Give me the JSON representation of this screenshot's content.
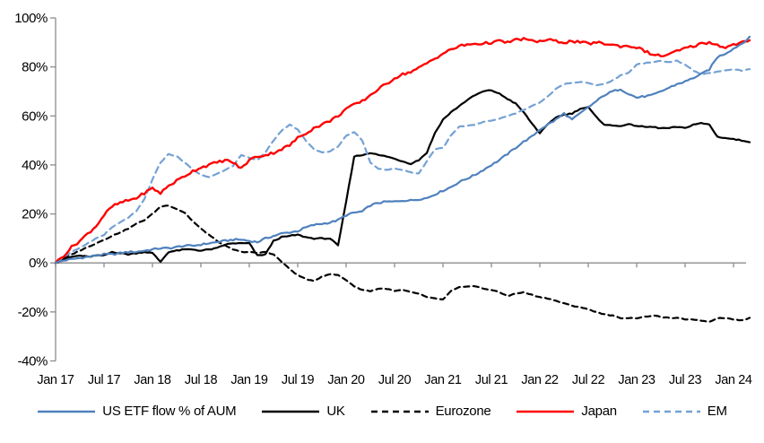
{
  "chart_data": {
    "type": "line",
    "title": "",
    "xlabel": "",
    "ylabel": "",
    "x_unit": "months since Jan 2017 (monthly samples, Jan 2017 - Mar 2024)",
    "ylim": [
      -40,
      100
    ],
    "grid": false,
    "legend_position": "bottom",
    "axis_color": "#8c8c8c",
    "y_tick_values": [
      100,
      80,
      60,
      40,
      20,
      0,
      -20,
      -40
    ],
    "y_tick_labels": [
      "100%",
      "80%",
      "60%",
      "40%",
      "20%",
      "0%",
      "-20%",
      "-40%"
    ],
    "x_tick_labels": [
      "Jan 17",
      "Jul 17",
      "Jan 18",
      "Jul 18",
      "Jan 19",
      "Jul 19",
      "Jan 20",
      "Jul 20",
      "Jan 21",
      "Jul 21",
      "Jan 22",
      "Jul 22",
      "Jan 23",
      "Jul 23",
      "Jan 24"
    ],
    "series": [
      {
        "name": "US ETF flow % of AUM",
        "slug": "us-etf-flow",
        "color": "#4f81bd",
        "dash": "solid",
        "values": [
          0,
          1,
          1.5,
          2,
          2.5,
          3,
          3.5,
          3.5,
          4,
          4.5,
          4.5,
          5,
          5.5,
          6,
          6,
          6.5,
          7,
          7,
          7.5,
          8,
          8.5,
          9,
          9.5,
          9.5,
          9,
          8.5,
          10,
          11,
          12,
          12.5,
          13,
          14.5,
          15.5,
          16,
          16.5,
          17.5,
          19.5,
          20.5,
          21,
          23.5,
          24.5,
          25,
          25,
          25.5,
          25.5,
          26,
          26.5,
          28,
          29.5,
          31,
          33,
          34.5,
          36,
          38,
          40,
          42,
          44.5,
          47,
          49.5,
          51.5,
          54.5,
          56.5,
          58.5,
          61,
          58.5,
          61,
          63.5,
          66,
          68.5,
          70,
          71,
          69,
          67.5,
          68,
          68.5,
          70,
          71.5,
          73,
          74,
          75.5,
          77,
          79,
          84,
          85.5,
          87.5,
          89.5,
          92
        ]
      },
      {
        "name": "UK",
        "slug": "uk",
        "color": "#000000",
        "dash": "solid",
        "values": [
          0,
          1.5,
          2.5,
          3,
          2.5,
          3,
          3,
          4.5,
          4,
          3.5,
          4,
          4.5,
          4,
          0.5,
          4.5,
          5,
          5.5,
          5.5,
          5,
          5.5,
          6,
          7.5,
          8,
          8,
          8,
          3,
          3.5,
          9,
          10.5,
          11,
          11.5,
          10.5,
          10,
          10,
          10,
          7,
          25,
          43.5,
          44,
          45,
          44,
          43.5,
          42.5,
          41.5,
          40.5,
          42,
          45,
          53,
          58.5,
          61.5,
          64,
          66.5,
          68.5,
          70,
          70.5,
          69,
          67,
          65,
          61.5,
          57,
          53,
          56.5,
          59.5,
          60.5,
          61,
          63,
          63.5,
          59.5,
          56.5,
          56,
          56,
          56.5,
          56,
          55.5,
          55.5,
          55,
          55,
          55.5,
          55,
          56.5,
          57,
          56.5,
          51.5,
          51,
          50.5,
          50,
          49.5
        ]
      },
      {
        "name": "Eurozone",
        "slug": "eurozone",
        "color": "#000000",
        "dash": "dashed",
        "values": [
          0,
          2,
          3.5,
          5,
          6.5,
          8,
          9.5,
          11,
          12.5,
          14,
          16,
          17.5,
          20,
          23,
          23.5,
          22,
          20.5,
          17,
          14,
          11.5,
          9,
          7,
          5.5,
          4.5,
          4.5,
          4,
          4.5,
          3.5,
          0.5,
          -2.5,
          -5,
          -6.5,
          -7.5,
          -5.5,
          -4.5,
          -5,
          -7,
          -9.5,
          -11,
          -11.5,
          -10.5,
          -10.5,
          -11.5,
          -11,
          -12,
          -12.5,
          -14,
          -14.5,
          -15,
          -11.5,
          -10,
          -9.5,
          -9.5,
          -10.5,
          -11,
          -12,
          -13.5,
          -12.5,
          -12,
          -13,
          -14,
          -14.5,
          -15.5,
          -16.5,
          -17.5,
          -18,
          -19,
          -20,
          -21,
          -21.5,
          -22.5,
          -22.5,
          -22.5,
          -22,
          -21.5,
          -22,
          -22.5,
          -22.5,
          -23,
          -23,
          -23.5,
          -24,
          -22.5,
          -22.5,
          -23,
          -23.5,
          -22.5
        ]
      },
      {
        "name": "Japan",
        "slug": "japan",
        "color": "#ff0000",
        "dash": "solid",
        "values": [
          0,
          3,
          6.5,
          9,
          12,
          15,
          19.5,
          23,
          24.5,
          25.5,
          26.5,
          28.5,
          30.5,
          28.5,
          31.5,
          33.5,
          35.5,
          37.5,
          39,
          40,
          41,
          42,
          41,
          38.5,
          42,
          43.5,
          44,
          45,
          46.5,
          48,
          51,
          53,
          55,
          56.5,
          58,
          60,
          63,
          64.5,
          66,
          68.5,
          71,
          73,
          75.5,
          77,
          78,
          79.5,
          81.5,
          83.5,
          85.5,
          87,
          88.5,
          89,
          89.5,
          89.5,
          90,
          90.5,
          90,
          91,
          91.5,
          90.5,
          90.5,
          91,
          90.5,
          90,
          90.5,
          90,
          89.5,
          90,
          89.5,
          89,
          88.5,
          88.5,
          88,
          86.5,
          85,
          84.5,
          85,
          86.5,
          87.5,
          88.5,
          89.5,
          90,
          89,
          88,
          89,
          90,
          90.5
        ]
      },
      {
        "name": "EM",
        "slug": "em",
        "color": "#74a1d4",
        "dash": "dashed",
        "values": [
          0,
          2.5,
          4.5,
          6,
          8,
          10,
          11.5,
          14.5,
          16.5,
          18.5,
          21,
          26,
          34,
          41,
          44.5,
          43.5,
          41,
          38,
          36,
          35,
          36.5,
          38,
          39.5,
          44,
          43,
          42,
          45,
          50,
          54,
          56.5,
          54.5,
          50,
          46.5,
          45,
          45.5,
          47.5,
          52,
          53.5,
          50,
          41,
          38.5,
          38,
          38.5,
          38,
          37,
          36.5,
          41.5,
          46.5,
          47,
          52,
          55.5,
          56,
          56.5,
          57.5,
          58,
          59,
          60,
          61,
          62.5,
          64,
          65.5,
          68,
          71,
          73,
          73.5,
          74,
          73.5,
          72.5,
          73,
          74.5,
          76.5,
          77.5,
          81,
          81.5,
          82,
          82.5,
          82,
          82.5,
          81,
          78.5,
          77,
          77.5,
          78,
          78.5,
          79,
          78.5,
          79
        ]
      }
    ]
  }
}
